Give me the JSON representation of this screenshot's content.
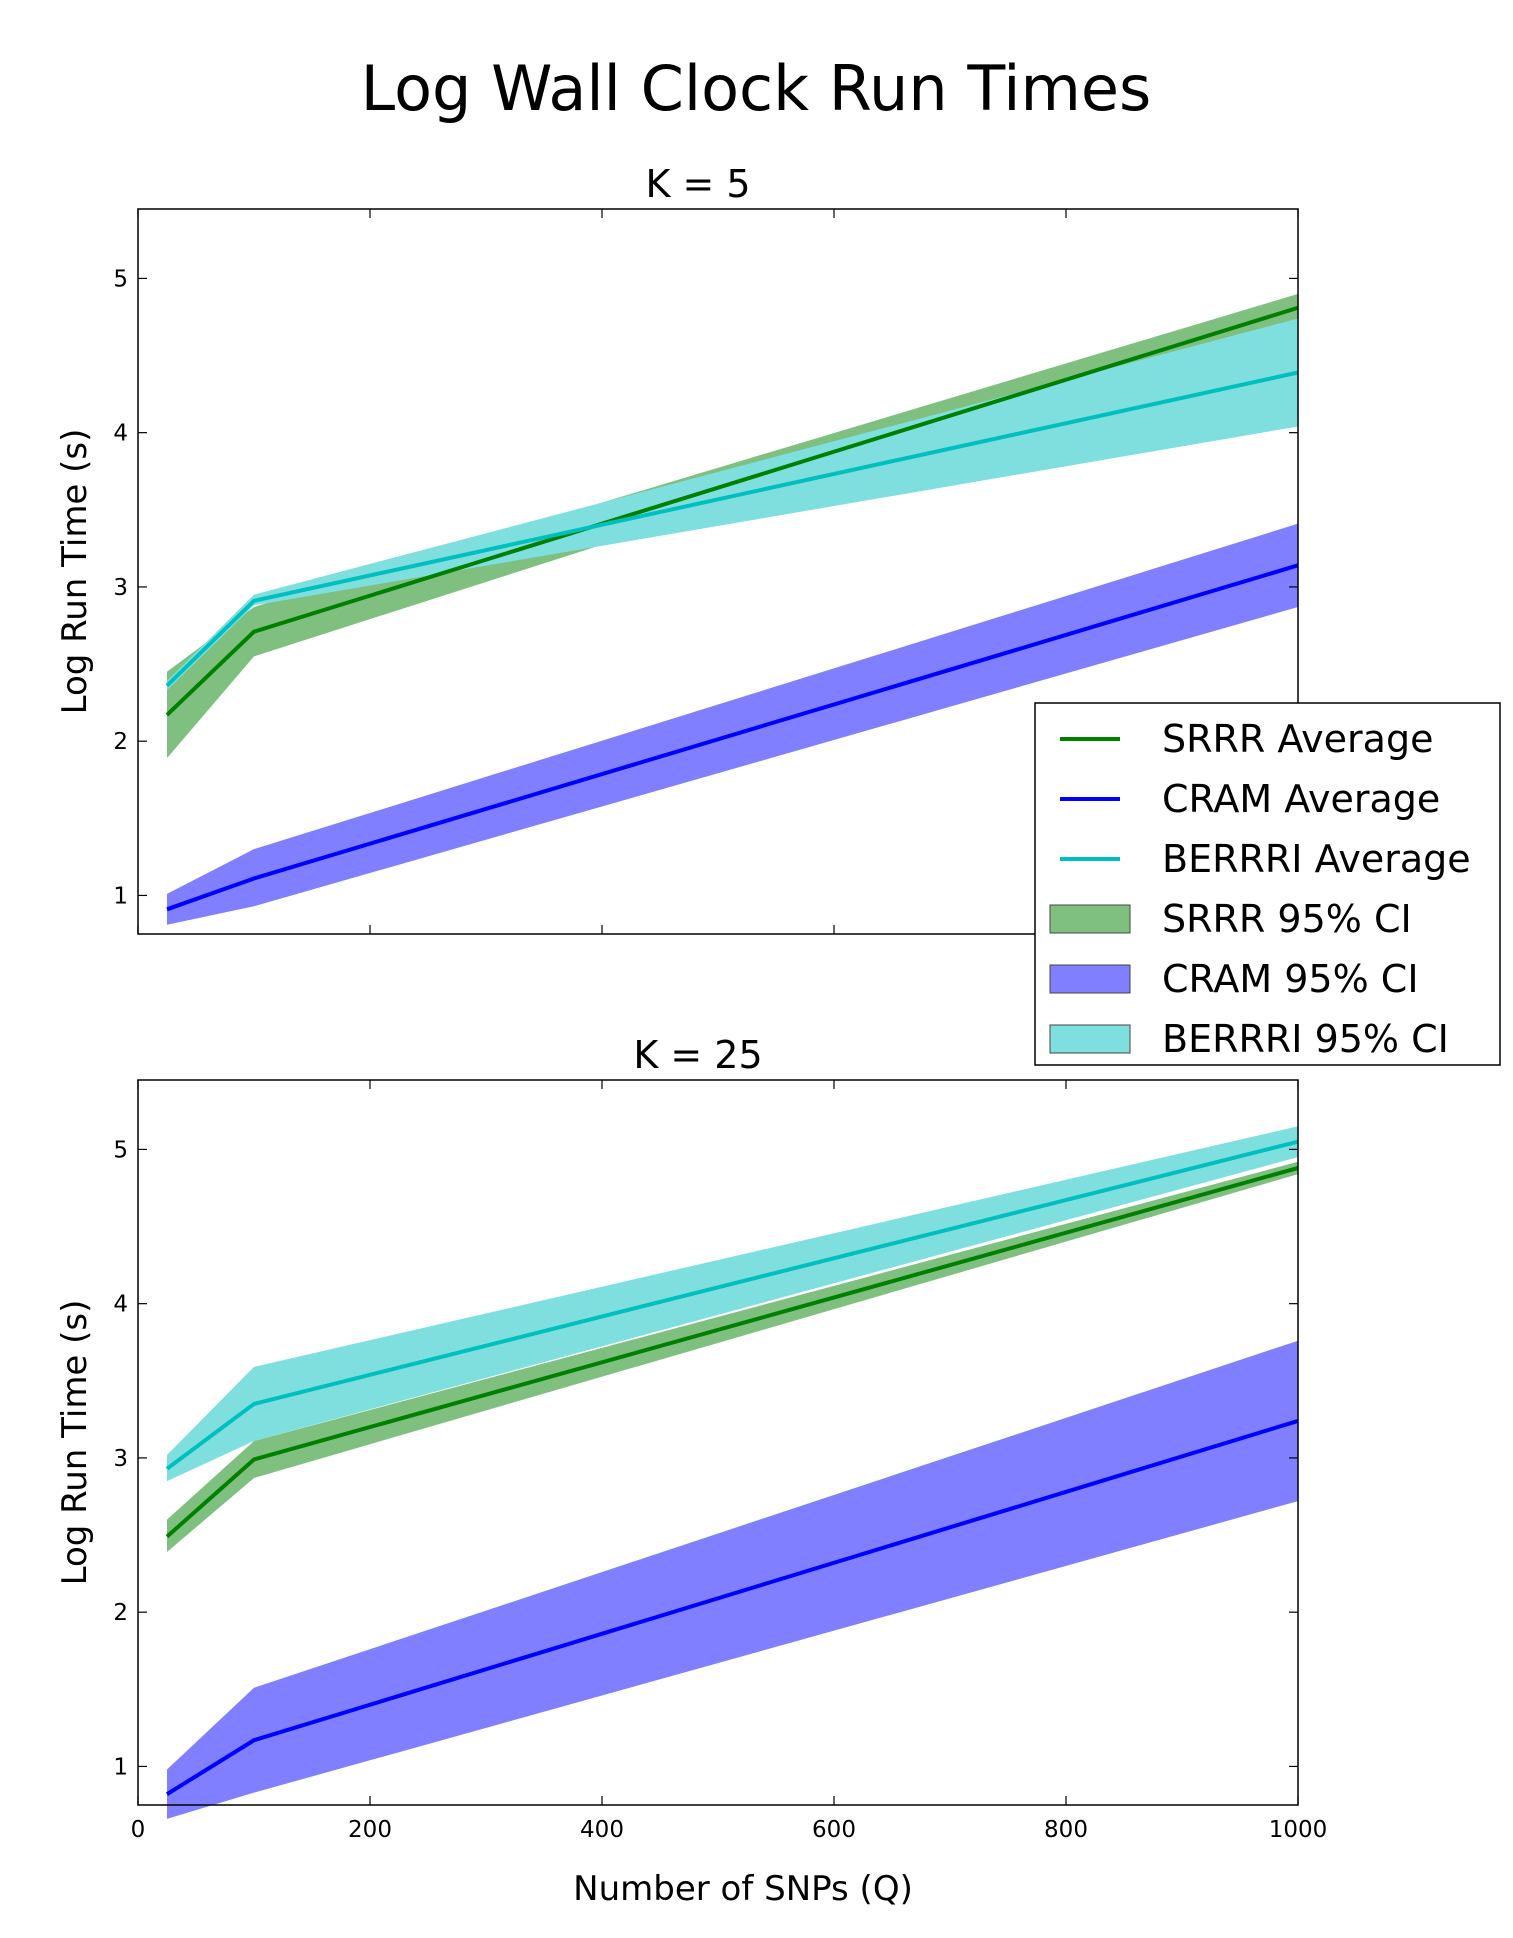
{
  "chart_data": [
    {
      "type": "line",
      "title": "K = 5",
      "figure_title": "Log Wall Clock Run Times",
      "xlabel": "Number of SNPs (Q)",
      "ylabel": "Log Run Time (s)",
      "xlim": [
        0,
        1000
      ],
      "ylim": [
        0.75,
        5.45
      ],
      "xticks": [
        0,
        200,
        400,
        600,
        800,
        1000
      ],
      "yticks": [
        1,
        2,
        3,
        4,
        5
      ],
      "show_xtick_labels": false,
      "x": [
        25,
        100,
        1000
      ],
      "series": [
        {
          "name": "SRRR",
          "color": "#008000",
          "fill": "#7fbf7f",
          "mean": [
            2.17,
            2.71,
            4.81
          ],
          "lower": [
            1.89,
            2.55,
            4.72
          ],
          "upper": [
            2.45,
            2.87,
            4.9
          ]
        },
        {
          "name": "CRAM",
          "color": "#0000ff",
          "fill": "#7f7fff",
          "mean": [
            0.91,
            1.11,
            3.14
          ],
          "lower": [
            0.81,
            0.93,
            2.87
          ],
          "upper": [
            1.01,
            1.3,
            3.41
          ]
        },
        {
          "name": "BERRRI",
          "color": "#00bfbf",
          "fill": "#7fdfdf",
          "mean": [
            2.36,
            2.91,
            4.39
          ],
          "lower": [
            2.33,
            2.88,
            4.04
          ],
          "upper": [
            2.39,
            2.95,
            4.74
          ]
        }
      ]
    },
    {
      "type": "line",
      "title": "K = 25",
      "xlabel": "Number of SNPs (Q)",
      "ylabel": "Log Run Time (s)",
      "xlim": [
        0,
        1000
      ],
      "ylim": [
        0.75,
        5.45
      ],
      "xticks": [
        0,
        200,
        400,
        600,
        800,
        1000
      ],
      "yticks": [
        1,
        2,
        3,
        4,
        5
      ],
      "show_xtick_labels": true,
      "x": [
        25,
        100,
        1000
      ],
      "series": [
        {
          "name": "SRRR",
          "color": "#008000",
          "fill": "#7fbf7f",
          "mean": [
            2.49,
            2.99,
            4.88
          ],
          "lower": [
            2.39,
            2.87,
            4.84
          ],
          "upper": [
            2.6,
            3.11,
            4.92
          ]
        },
        {
          "name": "CRAM",
          "color": "#0000ff",
          "fill": "#7f7fff",
          "mean": [
            0.82,
            1.17,
            3.24
          ],
          "lower": [
            0.66,
            0.83,
            2.72
          ],
          "upper": [
            0.98,
            1.51,
            3.76
          ]
        },
        {
          "name": "BERRRI",
          "color": "#00bfbf",
          "fill": "#7fdfdf",
          "mean": [
            2.93,
            3.35,
            5.05
          ],
          "lower": [
            2.85,
            3.11,
            4.95
          ],
          "upper": [
            3.02,
            3.59,
            5.15
          ]
        }
      ]
    }
  ],
  "legend": {
    "placement": "right",
    "items": [
      {
        "label": "SRRR Average",
        "kind": "line",
        "color": "#008000"
      },
      {
        "label": "CRAM Average",
        "kind": "line",
        "color": "#0000ff"
      },
      {
        "label": "BERRRI Average",
        "kind": "line",
        "color": "#00bfbf"
      },
      {
        "label": "SRRR 95% CI",
        "kind": "patch",
        "color": "#7fbf7f"
      },
      {
        "label": "CRAM 95% CI",
        "kind": "patch",
        "color": "#7f7fff"
      },
      {
        "label": "BERRRI 95% CI",
        "kind": "patch",
        "color": "#7fdfdf"
      }
    ]
  }
}
